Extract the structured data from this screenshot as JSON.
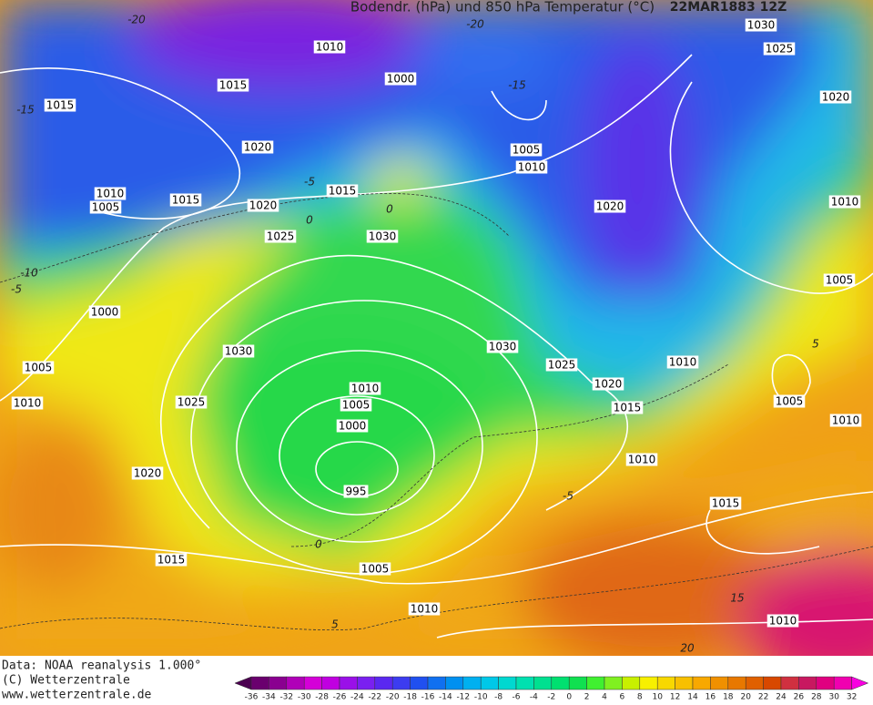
{
  "header": {
    "title": "Bodendr. (hPa) und 850 hPa Temperatur (°C)",
    "date": "22MAR1883 12Z"
  },
  "isobar_labels": [
    1010,
    1015,
    1015,
    1000,
    1020,
    1005,
    1010,
    1015,
    1010,
    1005,
    1015,
    1020,
    1020,
    1025,
    1030,
    1030,
    1025,
    1020,
    1010,
    1005,
    1000,
    1030,
    1030,
    1025,
    1020,
    1010,
    1005,
    1010,
    1005,
    1015,
    1025,
    1010,
    1005,
    1010,
    1000,
    1010,
    995,
    1020,
    1015,
    1015,
    1005,
    1010,
    1010
  ],
  "temperature_labels": [
    -20,
    -20,
    -15,
    -15,
    -5,
    0,
    0,
    -10,
    -5,
    -5,
    0,
    5,
    15,
    20,
    5
  ],
  "footer": [
    "Data: NOAA reanalysis 1.000°",
    "(C) Wetterzentrale",
    "www.wetterzentrale.de"
  ],
  "legend": {
    "ticks": [
      -36,
      -34,
      -32,
      -30,
      -28,
      -26,
      -24,
      -22,
      -20,
      -18,
      -16,
      -14,
      -12,
      -10,
      -8,
      -6,
      -4,
      -2,
      0,
      2,
      4,
      6,
      8,
      10,
      12,
      14,
      16,
      18,
      20,
      22,
      24,
      26,
      28,
      30,
      32
    ],
    "colors": [
      "#4b0050",
      "#6a006e",
      "#8a0090",
      "#b000b8",
      "#d400d8",
      "#c000e0",
      "#9a10e8",
      "#7a20f0",
      "#5a28f0",
      "#3c3cf0",
      "#2050f0",
      "#1070f0",
      "#0090f0",
      "#00b0f0",
      "#00c8e8",
      "#00d8d0",
      "#00e0b0",
      "#00e090",
      "#00e070",
      "#10e050",
      "#40f030",
      "#80f020",
      "#c8f000",
      "#f8f000",
      "#f8d800",
      "#f8c000",
      "#f8a800",
      "#f09000",
      "#e87800",
      "#e06000",
      "#d84800",
      "#d03040",
      "#c81860",
      "#e00080",
      "#f000b0",
      "#f800e0"
    ]
  }
}
